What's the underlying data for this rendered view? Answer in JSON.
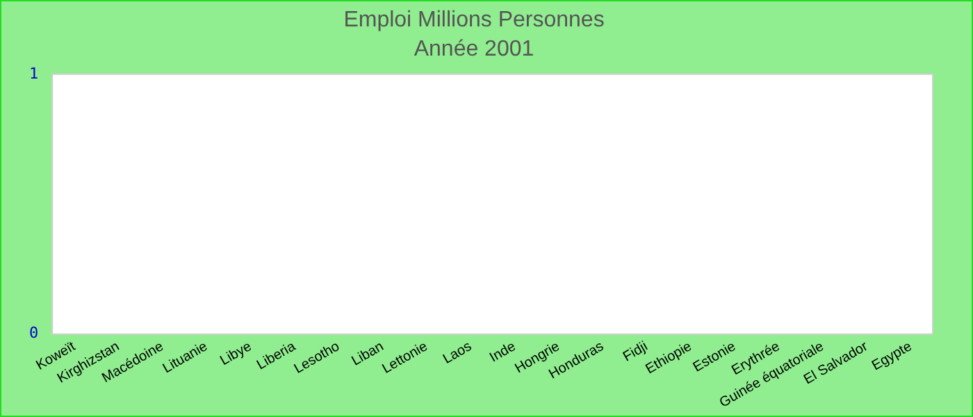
{
  "chart_data": {
    "type": "bar",
    "title": "Emploi Millions Personnes",
    "subtitle": "Année 2001",
    "categories": [
      "Koweït",
      "Kirghizstan",
      "Macédoine",
      "Lituanie",
      "Libye",
      "Liberia",
      "Lesotho",
      "Liban",
      "Lettonie",
      "Laos",
      "Inde",
      "Hongrie",
      "Honduras",
      "Fidji",
      "Ethiopie",
      "Estonie",
      "Erythrée",
      "Guinée équatoriale",
      "El Salvador",
      "Egypte"
    ],
    "values": [
      0,
      0,
      0,
      0,
      0,
      0,
      0,
      0,
      0,
      0,
      0,
      0,
      0,
      0,
      0,
      0,
      0,
      0,
      0,
      0
    ],
    "ylim": [
      0,
      1
    ],
    "yticks": [
      0,
      1
    ],
    "grid": false,
    "legend": false
  }
}
